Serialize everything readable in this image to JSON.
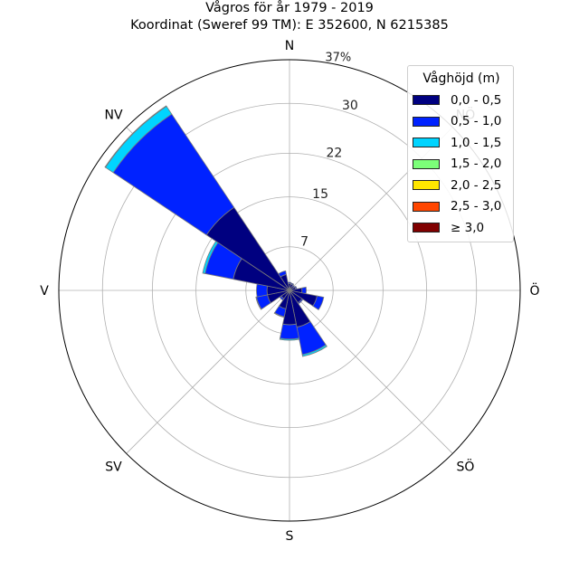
{
  "title_line1": "Vågros för år 1979 - 2019",
  "title_line2": "Koordinat (Sweref 99 TM): E 352600, N 6215385",
  "chart_data": {
    "type": "polar-stacked-bar",
    "title": "Vågros för år 1979 - 2019",
    "subtitle": "Koordinat (Sweref 99 TM): E 352600, N 6215385",
    "direction_labels": [
      "N",
      "NV",
      "V",
      "SV",
      "S",
      "SÖ",
      "Ö",
      "NÖ"
    ],
    "r_ticks": [
      7,
      15,
      22,
      30
    ],
    "r_tick_labels": [
      "7",
      "15",
      "22",
      "30"
    ],
    "r_max": 37,
    "r_max_label": "37%",
    "grid": true,
    "legend": {
      "title": "Våghöjd (m)",
      "placement": "top-right",
      "entries": [
        "0,0 - 0,5",
        "0,5 - 1,0",
        "1,0 - 1,5",
        "1,5 - 2,0",
        "2,0 - 2,5",
        "2,5 - 3,0",
        "≥ 3,0"
      ],
      "colors": [
        "#000080",
        "#0022ff",
        "#00d4ff",
        "#7cff79",
        "#ffe600",
        "#ff4600",
        "#800000"
      ]
    },
    "sectors": [
      {
        "direction_deg": 0,
        "cumulative": [
          1.1,
          1.3
        ]
      },
      {
        "direction_deg": 22.5,
        "cumulative": [
          1.0,
          1.2
        ]
      },
      {
        "direction_deg": 45,
        "cumulative": [
          0.8,
          1.0
        ]
      },
      {
        "direction_deg": 67.5,
        "cumulative": [
          1.0,
          1.2
        ]
      },
      {
        "direction_deg": 90,
        "cumulative": [
          2.0,
          2.7
        ]
      },
      {
        "direction_deg": 112.5,
        "cumulative": [
          4.5,
          5.6
        ]
      },
      {
        "direction_deg": 135,
        "cumulative": [
          2.4,
          2.6
        ]
      },
      {
        "direction_deg": 157.5,
        "cumulative": [
          6.0,
          10.5,
          10.8
        ]
      },
      {
        "direction_deg": 180,
        "cumulative": [
          5.5,
          7.8,
          8.0
        ]
      },
      {
        "direction_deg": 202.5,
        "cumulative": [
          3.0,
          4.3,
          4.4
        ]
      },
      {
        "direction_deg": 225,
        "cumulative": [
          1.6,
          1.9
        ]
      },
      {
        "direction_deg": 247.5,
        "cumulative": [
          3.6,
          5.4,
          5.5
        ]
      },
      {
        "direction_deg": 270,
        "cumulative": [
          3.6,
          5.3
        ]
      },
      {
        "direction_deg": 292.5,
        "cumulative": [
          9.2,
          13.8,
          14.2
        ]
      },
      {
        "direction_deg": 315,
        "cumulative": [
          16.0,
          34.0,
          35.5,
          35.6
        ]
      },
      {
        "direction_deg": 337.5,
        "cumulative": [
          2.6,
          3.2
        ]
      }
    ]
  }
}
